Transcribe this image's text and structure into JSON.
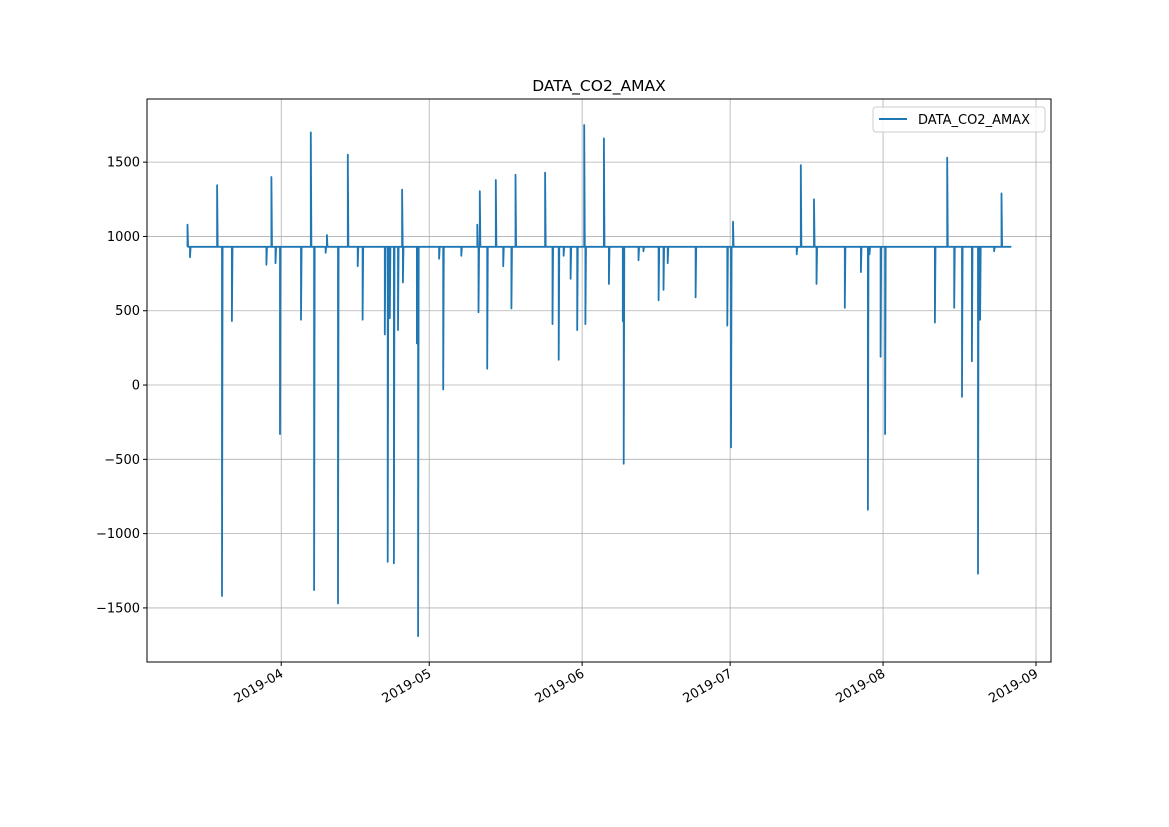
{
  "chart_data": {
    "type": "line",
    "title": "DATA_CO2_AMAX",
    "xlabel": "",
    "ylabel": "",
    "legend": {
      "entries": [
        "DATA_CO2_AMAX"
      ],
      "placement": "top-right"
    },
    "grid": true,
    "xlim": [
      "2019-03-04T19:00:00Z",
      "2019-09-04T01:00:00Z"
    ],
    "ylim": [
      -1864,
      1925
    ],
    "x_ticks": [
      {
        "date": "2019-04-01",
        "label": "2019-04"
      },
      {
        "date": "2019-05-01",
        "label": "2019-05"
      },
      {
        "date": "2019-06-01",
        "label": "2019-06"
      },
      {
        "date": "2019-07-01",
        "label": "2019-07"
      },
      {
        "date": "2019-08-01",
        "label": "2019-08"
      },
      {
        "date": "2019-09-01",
        "label": "2019-09"
      }
    ],
    "y_ticks": [
      {
        "value": 1500,
        "label": "1500"
      },
      {
        "value": 1000,
        "label": "1000"
      },
      {
        "value": 500,
        "label": "500"
      },
      {
        "value": 0,
        "label": "0"
      },
      {
        "value": -500,
        "label": "−500"
      },
      {
        "value": -1000,
        "label": "−1000"
      },
      {
        "value": -1500,
        "label": "−1500"
      }
    ],
    "series": [
      {
        "name": "DATA_CO2_AMAX",
        "color": "#1f77b4",
        "start": "2019-03-13",
        "end": "2019-08-27",
        "baseline": 930,
        "spikes": [
          [
            "2019-03-13T00",
            1080
          ],
          [
            "2019-03-13T12",
            860
          ],
          [
            "2019-03-19T00",
            1345
          ],
          [
            "2019-03-20T00",
            -1420
          ],
          [
            "2019-03-22T00",
            430
          ],
          [
            "2019-03-29T00",
            810
          ],
          [
            "2019-03-30T00",
            1400
          ],
          [
            "2019-03-30T20",
            820
          ],
          [
            "2019-03-31T18",
            -330
          ],
          [
            "2019-04-05T00",
            440
          ],
          [
            "2019-04-07T00",
            1700
          ],
          [
            "2019-04-07T16",
            -1380
          ],
          [
            "2019-04-10T00",
            890
          ],
          [
            "2019-04-10T06",
            1010
          ],
          [
            "2019-04-12T12",
            -1470
          ],
          [
            "2019-04-14T12",
            1550
          ],
          [
            "2019-04-16T12",
            800
          ],
          [
            "2019-04-17T12",
            440
          ],
          [
            "2019-04-22T00",
            340
          ],
          [
            "2019-04-22T14",
            -1190
          ],
          [
            "2019-04-23T00",
            450
          ],
          [
            "2019-04-23T20",
            -1200
          ],
          [
            "2019-04-24T16",
            370
          ],
          [
            "2019-04-25T12",
            1315
          ],
          [
            "2019-04-25T16",
            690
          ],
          [
            "2019-04-28T12",
            280
          ],
          [
            "2019-04-28T18",
            -1690
          ],
          [
            "2019-05-03T00",
            850
          ],
          [
            "2019-05-03T20",
            -30
          ],
          [
            "2019-05-07T12",
            870
          ],
          [
            "2019-05-10T18",
            1080
          ],
          [
            "2019-05-11T00",
            490
          ],
          [
            "2019-05-11T06",
            1305
          ],
          [
            "2019-05-12T18",
            110
          ],
          [
            "2019-05-14T12",
            1380
          ],
          [
            "2019-05-16T00",
            800
          ],
          [
            "2019-05-17T16",
            515
          ],
          [
            "2019-05-18T12",
            1415
          ],
          [
            "2019-05-24T12",
            1430
          ],
          [
            "2019-05-26T00",
            410
          ],
          [
            "2019-05-27T06",
            170
          ],
          [
            "2019-05-28T06",
            870
          ],
          [
            "2019-05-29T16",
            715
          ],
          [
            "2019-05-31T00",
            370
          ],
          [
            "2019-06-01T10",
            1750
          ],
          [
            "2019-06-01T16",
            410
          ],
          [
            "2019-06-05T10",
            1660
          ],
          [
            "2019-06-06T10",
            680
          ],
          [
            "2019-06-09T06",
            430
          ],
          [
            "2019-06-09T10",
            -530
          ],
          [
            "2019-06-12T10",
            840
          ],
          [
            "2019-06-13T10",
            900
          ],
          [
            "2019-06-16T12",
            570
          ],
          [
            "2019-06-17T12",
            640
          ],
          [
            "2019-06-18T08",
            820
          ],
          [
            "2019-06-24T00",
            590
          ],
          [
            "2019-06-30T10",
            400
          ],
          [
            "2019-07-01T04",
            -420
          ],
          [
            "2019-07-01T14",
            1100
          ],
          [
            "2019-07-14T12",
            880
          ],
          [
            "2019-07-15T08",
            1480
          ],
          [
            "2019-07-18T00",
            1250
          ],
          [
            "2019-07-18T12",
            680
          ],
          [
            "2019-07-24T06",
            520
          ],
          [
            "2019-07-27T12",
            760
          ],
          [
            "2019-07-28T22",
            -840
          ],
          [
            "2019-07-29T06",
            880
          ],
          [
            "2019-07-31T12",
            190
          ],
          [
            "2019-08-01T10",
            -330
          ],
          [
            "2019-08-11T12",
            420
          ],
          [
            "2019-08-14T00",
            1530
          ],
          [
            "2019-08-15T10",
            520
          ],
          [
            "2019-08-17T00",
            -80
          ],
          [
            "2019-08-19T00",
            160
          ],
          [
            "2019-08-20T06",
            -1270
          ],
          [
            "2019-08-20T16",
            440
          ],
          [
            "2019-08-23T12",
            900
          ],
          [
            "2019-08-25T00",
            1290
          ]
        ]
      }
    ]
  }
}
